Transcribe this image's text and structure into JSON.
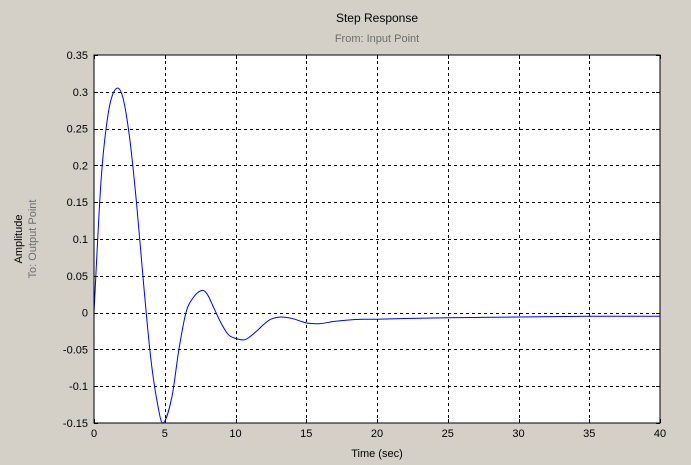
{
  "chart_data": {
    "type": "line",
    "title": "Step Response",
    "subtitle": "From: Input Point",
    "xlabel": "Time (sec)",
    "ylabel": "Amplitude",
    "ylabel_sub": "To: Output Point",
    "xlim": [
      0,
      40
    ],
    "ylim": [
      -0.15,
      0.35
    ],
    "grid": true,
    "x_ticks": [
      0,
      5,
      10,
      15,
      20,
      25,
      30,
      35,
      40
    ],
    "x_tick_labels": [
      "0",
      "5",
      "10",
      "15",
      "20",
      "25",
      "30",
      "35",
      "40"
    ],
    "y_ticks": [
      -0.15,
      -0.1,
      -0.05,
      0,
      0.05,
      0.1,
      0.15,
      0.2,
      0.25,
      0.3,
      0.35
    ],
    "y_tick_labels": [
      "-0.15",
      "-0.1",
      "-0.05",
      "0",
      "0.05",
      "0.1",
      "0.15",
      "0.2",
      "0.25",
      "0.3",
      "0.35"
    ],
    "series": [
      {
        "color": "#0000ff",
        "x": [
          0,
          0.5,
          1.0,
          1.5,
          2.0,
          2.5,
          3.0,
          3.5,
          4.0,
          4.5,
          4.9,
          5.5,
          6.0,
          6.5,
          7.0,
          7.6,
          8.0,
          8.5,
          9.0,
          9.5,
          10.0,
          10.6,
          11.0,
          11.5,
          12.0,
          12.5,
          13.2,
          14.0,
          14.5,
          15.0,
          15.5,
          16.0,
          17.0,
          18.0,
          19.0,
          20.0,
          22.0,
          25.0,
          30.0,
          35.0,
          40.0
        ],
        "y": [
          0.0,
          0.18,
          0.27,
          0.303,
          0.295,
          0.24,
          0.15,
          0.04,
          -0.06,
          -0.125,
          -0.15,
          -0.115,
          -0.05,
          0.0,
          0.02,
          0.03,
          0.025,
          0.005,
          -0.015,
          -0.03,
          -0.035,
          -0.037,
          -0.033,
          -0.025,
          -0.016,
          -0.009,
          -0.006,
          -0.008,
          -0.011,
          -0.014,
          -0.015,
          -0.015,
          -0.012,
          -0.01,
          -0.009,
          -0.009,
          -0.008,
          -0.007,
          -0.006,
          -0.005,
          -0.005
        ]
      }
    ]
  }
}
